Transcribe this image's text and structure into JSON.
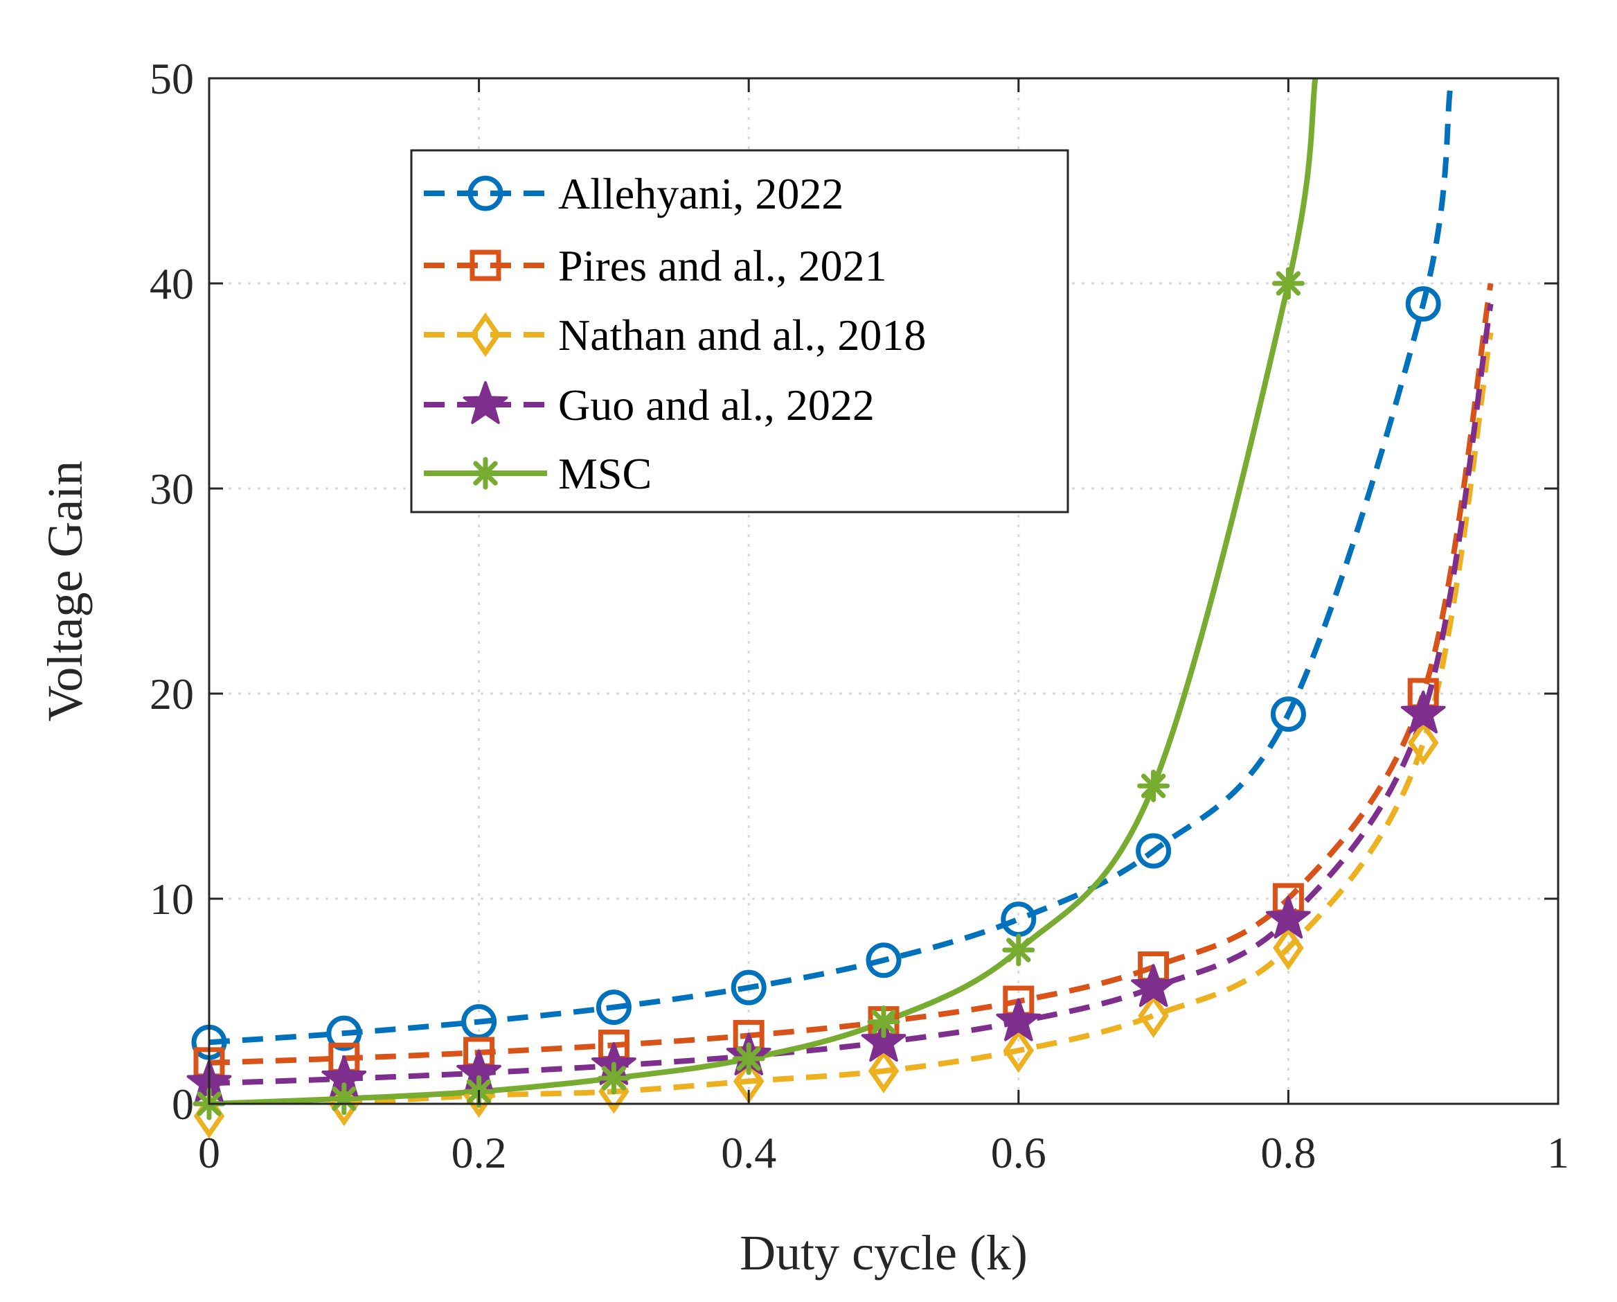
{
  "chart_data": {
    "type": "line",
    "title": "",
    "xlabel": "Duty cycle (k)",
    "ylabel": "Voltage Gain",
    "xlim": [
      0,
      1
    ],
    "ylim": [
      0,
      50
    ],
    "xticks": [
      "0",
      "0.2",
      "0.4",
      "0.6",
      "0.8",
      "1"
    ],
    "yticks": [
      "0",
      "10",
      "20",
      "30",
      "40",
      "50"
    ],
    "grid": true,
    "legend_position": "upper-left-inset",
    "series": [
      {
        "name": "Allehyani, 2022",
        "color": "#0072BD",
        "line": "dashed",
        "marker": "circle",
        "x": [
          0,
          0.1,
          0.2,
          0.3,
          0.4,
          0.5,
          0.6,
          0.7,
          0.8,
          0.9,
          0.92
        ],
        "y": [
          3,
          3.44,
          4,
          4.71,
          5.67,
          7,
          9,
          12.33,
          19,
          39,
          49.5
        ]
      },
      {
        "name": "Pires and al., 2021",
        "color": "#D95319",
        "line": "dashed",
        "marker": "square",
        "x": [
          0,
          0.1,
          0.2,
          0.3,
          0.4,
          0.5,
          0.6,
          0.7,
          0.8,
          0.9,
          0.95
        ],
        "y": [
          2,
          2.22,
          2.5,
          2.86,
          3.33,
          4,
          5,
          6.67,
          10,
          20,
          40
        ]
      },
      {
        "name": "Nathan and al., 2018",
        "color": "#EDB120",
        "line": "dashed",
        "marker": "diamond",
        "x": [
          0,
          0.1,
          0.2,
          0.3,
          0.4,
          0.5,
          0.6,
          0.7,
          0.8,
          0.9,
          0.95
        ],
        "y": [
          -0.6,
          0,
          0.4,
          0.6,
          1.1,
          1.6,
          2.6,
          4.3,
          7.6,
          17.6,
          37.6
        ]
      },
      {
        "name": "Guo and al., 2022",
        "color": "#7E2F8E",
        "line": "dashed",
        "marker": "star",
        "x": [
          0,
          0.1,
          0.2,
          0.3,
          0.4,
          0.5,
          0.6,
          0.7,
          0.8,
          0.9,
          0.95
        ],
        "y": [
          1,
          1.22,
          1.5,
          1.86,
          2.33,
          3,
          4,
          5.67,
          9,
          19,
          39
        ]
      },
      {
        "name": "MSC",
        "color": "#77AC30",
        "line": "solid",
        "marker": "asterisk",
        "x": [
          0,
          0.1,
          0.2,
          0.3,
          0.4,
          0.5,
          0.6,
          0.7,
          0.8,
          0.82
        ],
        "y": [
          0,
          0.25,
          0.6,
          1.25,
          2.2,
          4,
          7.5,
          15.5,
          40,
          50
        ]
      }
    ]
  }
}
